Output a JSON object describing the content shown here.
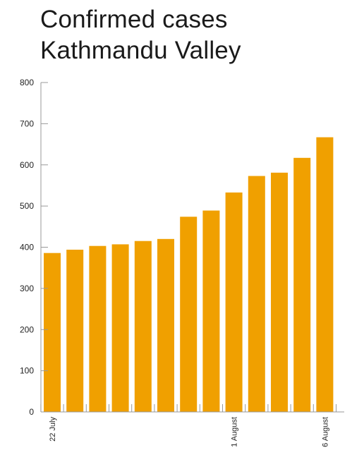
{
  "chart_data": {
    "type": "bar",
    "title_lines": [
      "Confirmed cases",
      "Kathmandu Valley"
    ],
    "categories": [
      "22 July",
      "",
      "",
      "",
      "",
      "",
      "",
      "",
      "1 August",
      "",
      "",
      "",
      "6 August"
    ],
    "values": [
      386,
      394,
      403,
      407,
      415,
      420,
      474,
      489,
      533,
      573,
      581,
      617,
      667
    ],
    "ylim": [
      0,
      800
    ],
    "yticks": [
      0,
      100,
      200,
      300,
      400,
      500,
      600,
      700,
      800
    ],
    "bar_color": "#F0A000",
    "axis_color": "#999999",
    "grid": false
  }
}
